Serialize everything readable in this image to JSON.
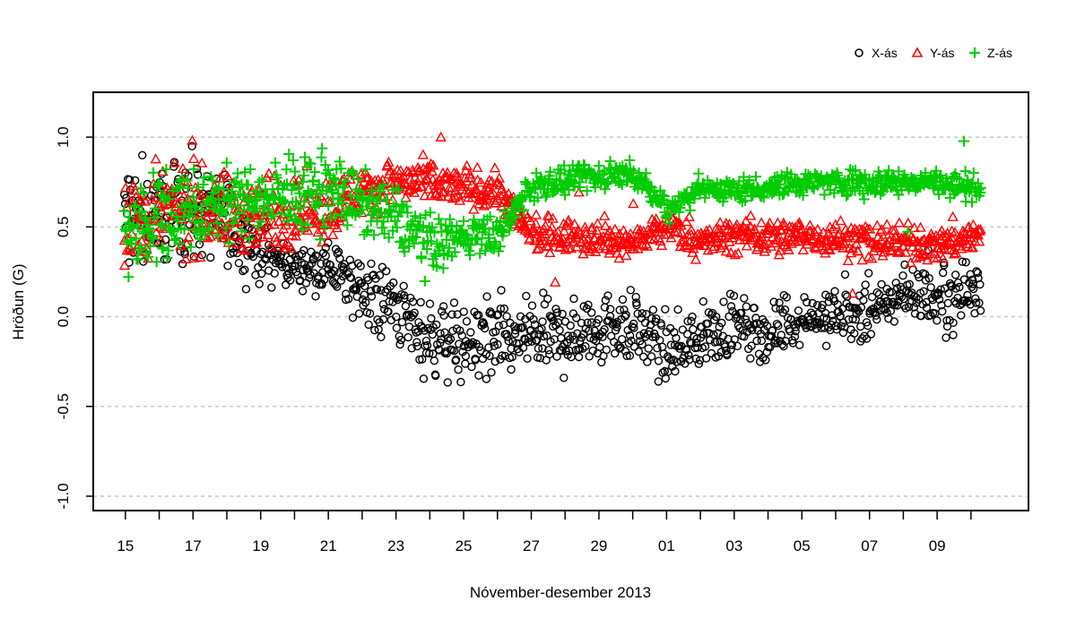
{
  "chart_data": {
    "type": "scatter",
    "title": "",
    "xlabel": "Nóvember-desember 2013",
    "ylabel": "Hröðun (G)",
    "ylim": [
      -1.08,
      1.25
    ],
    "xlim_days": [
      -0.95,
      26.7
    ],
    "x_ticks": [
      {
        "day": 0,
        "label": "15"
      },
      {
        "day": 2,
        "label": "17"
      },
      {
        "day": 4,
        "label": "19"
      },
      {
        "day": 6,
        "label": "21"
      },
      {
        "day": 8,
        "label": "23"
      },
      {
        "day": 10,
        "label": "25"
      },
      {
        "day": 12,
        "label": "27"
      },
      {
        "day": 14,
        "label": "29"
      },
      {
        "day": 16,
        "label": "01"
      },
      {
        "day": 18,
        "label": "03"
      },
      {
        "day": 20,
        "label": "05"
      },
      {
        "day": 22,
        "label": "07"
      },
      {
        "day": 24,
        "label": "09"
      }
    ],
    "x_minor_ticks": [
      1,
      3,
      5,
      7,
      9,
      11,
      13,
      15,
      17,
      19,
      21,
      23,
      25
    ],
    "y_ticks": [
      -1.0,
      -0.5,
      0.0,
      0.5,
      1.0
    ],
    "y_tick_labels": [
      "-1.0",
      "-0.5",
      "0.0",
      "0.5",
      "1.0"
    ],
    "gridlines": [
      -1.0,
      -0.5,
      0.0,
      0.5,
      1.0
    ],
    "grid_style": "dashed-horizontal",
    "legend_position": "top-right",
    "series": [
      {
        "name": "X-ás",
        "marker": "circle",
        "color": "#000000",
        "profile": [
          [
            0,
            0.55
          ],
          [
            1,
            0.6
          ],
          [
            2,
            0.6
          ],
          [
            3,
            0.55
          ],
          [
            4,
            0.35
          ],
          [
            5,
            0.28
          ],
          [
            6,
            0.28
          ],
          [
            7,
            0.15
          ],
          [
            8,
            0.05
          ],
          [
            9,
            -0.12
          ],
          [
            10,
            -0.15
          ],
          [
            11,
            -0.15
          ],
          [
            12,
            -0.1
          ],
          [
            13,
            -0.12
          ],
          [
            14,
            -0.05
          ],
          [
            15,
            -0.05
          ],
          [
            16,
            -0.2
          ],
          [
            17,
            -0.12
          ],
          [
            18,
            -0.05
          ],
          [
            19,
            -0.1
          ],
          [
            20,
            0.0
          ],
          [
            21,
            0.0
          ],
          [
            22,
            0.0
          ],
          [
            23,
            0.15
          ],
          [
            24,
            0.1
          ],
          [
            25,
            0.15
          ]
        ],
        "spread": [
          [
            0,
            0.25
          ],
          [
            3,
            0.2
          ],
          [
            5,
            0.08
          ],
          [
            7,
            0.15
          ],
          [
            9,
            0.18
          ],
          [
            16,
            0.15
          ],
          [
            20,
            0.1
          ],
          [
            25,
            0.15
          ]
        ]
      },
      {
        "name": "Y-ás",
        "marker": "triangle",
        "color": "#ff0000",
        "profile": [
          [
            0,
            0.55
          ],
          [
            2,
            0.6
          ],
          [
            4,
            0.55
          ],
          [
            6,
            0.6
          ],
          [
            7,
            0.7
          ],
          [
            8,
            0.75
          ],
          [
            10,
            0.72
          ],
          [
            11,
            0.7
          ],
          [
            12,
            0.45
          ],
          [
            14,
            0.45
          ],
          [
            15,
            0.4
          ],
          [
            16,
            0.5
          ],
          [
            17,
            0.42
          ],
          [
            18,
            0.45
          ],
          [
            20,
            0.45
          ],
          [
            22,
            0.42
          ],
          [
            24,
            0.4
          ],
          [
            25,
            0.45
          ]
        ],
        "spread": [
          [
            0,
            0.22
          ],
          [
            6,
            0.15
          ],
          [
            8,
            0.1
          ],
          [
            12,
            0.08
          ],
          [
            25,
            0.08
          ]
        ]
      },
      {
        "name": "Z-ás",
        "marker": "plus",
        "color": "#00cc00",
        "profile": [
          [
            0,
            0.45
          ],
          [
            2,
            0.6
          ],
          [
            4,
            0.65
          ],
          [
            6,
            0.7
          ],
          [
            8,
            0.55
          ],
          [
            9,
            0.4
          ],
          [
            10,
            0.45
          ],
          [
            11,
            0.45
          ],
          [
            12,
            0.72
          ],
          [
            14,
            0.78
          ],
          [
            15,
            0.8
          ],
          [
            16,
            0.6
          ],
          [
            17,
            0.72
          ],
          [
            18,
            0.7
          ],
          [
            20,
            0.75
          ],
          [
            22,
            0.75
          ],
          [
            24,
            0.75
          ],
          [
            25,
            0.72
          ]
        ],
        "spread": [
          [
            0,
            0.25
          ],
          [
            3,
            0.15
          ],
          [
            8,
            0.15
          ],
          [
            12,
            0.06
          ],
          [
            25,
            0.06
          ]
        ]
      }
    ]
  }
}
